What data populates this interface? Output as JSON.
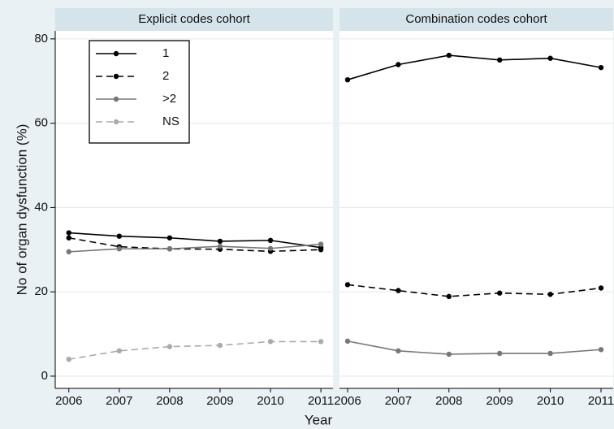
{
  "chart_data": [
    {
      "type": "line",
      "title": "Explicit codes cohort",
      "ylabel": "No of organ dysfunction (%)",
      "xlabel": "Year",
      "x": [
        2006,
        2007,
        2008,
        2009,
        2010,
        2011
      ],
      "xlim": [
        2005.73,
        2011.24
      ],
      "xticks": [
        2006,
        2007,
        2008,
        2009,
        2010,
        2011
      ],
      "ylim": [
        -2.9,
        81.9
      ],
      "yticks": [
        0,
        20,
        40,
        60,
        80
      ],
      "grid": true,
      "legend": "upper left",
      "series": [
        {
          "name": "1",
          "color": "#000000",
          "dash": false,
          "values": [
            34,
            33.2,
            32.8,
            32,
            32.2,
            30.5
          ]
        },
        {
          "name": "2",
          "color": "#000000",
          "dash": true,
          "values": [
            32.8,
            30.7,
            30.2,
            30.1,
            29.6,
            30
          ]
        },
        {
          "name": ">2",
          "color": "#777777",
          "dash": false,
          "values": [
            29.5,
            30.2,
            30.2,
            30.8,
            30.3,
            31.3
          ]
        },
        {
          "name": "NS",
          "color": "#aaaaaa",
          "dash": true,
          "values": [
            4,
            6,
            7,
            7.3,
            8.2,
            8.2
          ]
        }
      ]
    },
    {
      "type": "line",
      "title": "Combination codes cohort",
      "x": [
        2006,
        2007,
        2008,
        2009,
        2010,
        2011
      ],
      "xlim": [
        2005.84,
        2011.24
      ],
      "xticks": [
        2006,
        2007,
        2008,
        2009,
        2010,
        2011
      ],
      "series": [
        {
          "color": "#000000",
          "dash": false,
          "values": [
            70.3,
            73.9,
            76.1,
            75,
            75.4,
            73.2
          ]
        },
        {
          "color": "#000000",
          "dash": true,
          "values": [
            21.7,
            20.3,
            18.9,
            19.7,
            19.4,
            20.9
          ]
        },
        {
          "color": "#777777",
          "dash": false,
          "values": [
            8.3,
            6,
            5.2,
            5.4,
            5.4,
            6.3
          ]
        }
      ]
    }
  ]
}
